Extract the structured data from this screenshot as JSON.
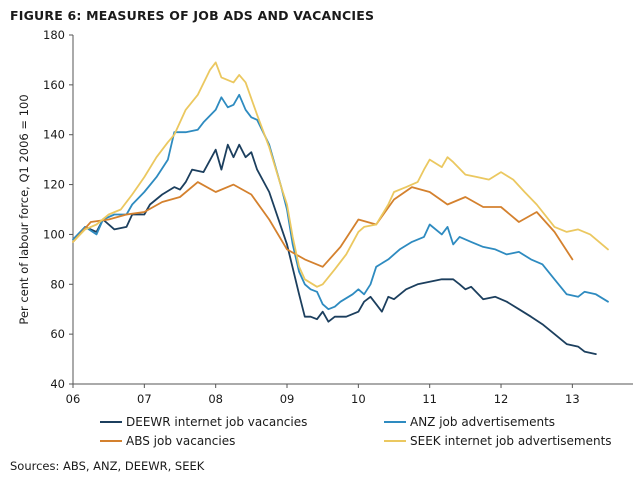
{
  "title": "FIGURE 6: MEASURES OF JOB ADS AND VACANCIES",
  "source": "Sources: ABS, ANZ, DEEWR, SEEK",
  "colors": {
    "DEEWR": "#1c3f5e",
    "ANZ": "#2e8bc0",
    "ABS": "#d4812e",
    "SEEK": "#ebc860",
    "axis": "#555555"
  },
  "chart_data": {
    "type": "line",
    "title": "FIGURE 6: MEASURES OF JOB ADS AND VACANCIES",
    "xlabel": "",
    "ylabel": "Per cent of labour force, Q1 2006 = 100",
    "xlim": [
      2006,
      2013.85
    ],
    "ylim": [
      40,
      180
    ],
    "xticks": [
      2006,
      2007,
      2008,
      2009,
      2010,
      2011,
      2012,
      2013
    ],
    "xtick_labels": [
      "06",
      "07",
      "08",
      "09",
      "10",
      "11",
      "12",
      "13"
    ],
    "yticks": [
      40,
      60,
      80,
      100,
      120,
      140,
      160,
      180
    ],
    "grid": false,
    "legend_position": "bottom",
    "series": [
      {
        "name": "DEEWR internet job vacancies",
        "color_key": "DEEWR",
        "points": [
          [
            2006.0,
            97
          ],
          [
            2006.17,
            103
          ],
          [
            2006.33,
            101
          ],
          [
            2006.42,
            106
          ],
          [
            2006.58,
            102
          ],
          [
            2006.75,
            103
          ],
          [
            2006.83,
            108
          ],
          [
            2007.0,
            108
          ],
          [
            2007.08,
            112
          ],
          [
            2007.25,
            116
          ],
          [
            2007.42,
            119
          ],
          [
            2007.5,
            118
          ],
          [
            2007.58,
            121
          ],
          [
            2007.67,
            126
          ],
          [
            2007.83,
            125
          ],
          [
            2008.0,
            134
          ],
          [
            2008.08,
            126
          ],
          [
            2008.17,
            136
          ],
          [
            2008.25,
            131
          ],
          [
            2008.33,
            136
          ],
          [
            2008.42,
            131
          ],
          [
            2008.5,
            133
          ],
          [
            2008.58,
            126
          ],
          [
            2008.75,
            117
          ],
          [
            2009.0,
            96
          ],
          [
            2009.17,
            76
          ],
          [
            2009.25,
            67
          ],
          [
            2009.33,
            67
          ],
          [
            2009.42,
            66
          ],
          [
            2009.5,
            69
          ],
          [
            2009.58,
            65
          ],
          [
            2009.67,
            67
          ],
          [
            2009.83,
            67
          ],
          [
            2010.0,
            69
          ],
          [
            2010.08,
            73
          ],
          [
            2010.17,
            75
          ],
          [
            2010.25,
            72
          ],
          [
            2010.33,
            69
          ],
          [
            2010.42,
            75
          ],
          [
            2010.5,
            74
          ],
          [
            2010.67,
            78
          ],
          [
            2010.83,
            80
          ],
          [
            2011.0,
            81
          ],
          [
            2011.17,
            82
          ],
          [
            2011.33,
            82
          ],
          [
            2011.42,
            80
          ],
          [
            2011.5,
            78
          ],
          [
            2011.58,
            79
          ],
          [
            2011.75,
            74
          ],
          [
            2011.92,
            75
          ],
          [
            2012.08,
            73
          ],
          [
            2012.25,
            70
          ],
          [
            2012.42,
            67
          ],
          [
            2012.58,
            64
          ],
          [
            2012.75,
            60
          ],
          [
            2012.92,
            56
          ],
          [
            2013.08,
            55
          ],
          [
            2013.17,
            53
          ],
          [
            2013.33,
            52
          ]
        ]
      },
      {
        "name": "ANZ job advertisements",
        "color_key": "ANZ",
        "points": [
          [
            2006.0,
            98
          ],
          [
            2006.17,
            103
          ],
          [
            2006.33,
            100
          ],
          [
            2006.42,
            106
          ],
          [
            2006.58,
            108
          ],
          [
            2006.75,
            108
          ],
          [
            2006.83,
            112
          ],
          [
            2007.0,
            117
          ],
          [
            2007.17,
            123
          ],
          [
            2007.33,
            130
          ],
          [
            2007.42,
            141
          ],
          [
            2007.58,
            141
          ],
          [
            2007.75,
            142
          ],
          [
            2007.83,
            145
          ],
          [
            2008.0,
            150
          ],
          [
            2008.08,
            155
          ],
          [
            2008.17,
            151
          ],
          [
            2008.25,
            152
          ],
          [
            2008.33,
            156
          ],
          [
            2008.42,
            150
          ],
          [
            2008.5,
            147
          ],
          [
            2008.58,
            146
          ],
          [
            2008.75,
            136
          ],
          [
            2008.92,
            119
          ],
          [
            2009.0,
            110
          ],
          [
            2009.08,
            96
          ],
          [
            2009.17,
            85
          ],
          [
            2009.25,
            80
          ],
          [
            2009.33,
            78
          ],
          [
            2009.42,
            77
          ],
          [
            2009.5,
            72
          ],
          [
            2009.58,
            70
          ],
          [
            2009.67,
            71
          ],
          [
            2009.75,
            73
          ],
          [
            2009.92,
            76
          ],
          [
            2010.0,
            78
          ],
          [
            2010.08,
            76
          ],
          [
            2010.17,
            80
          ],
          [
            2010.25,
            87
          ],
          [
            2010.42,
            90
          ],
          [
            2010.58,
            94
          ],
          [
            2010.75,
            97
          ],
          [
            2010.92,
            99
          ],
          [
            2011.0,
            104
          ],
          [
            2011.17,
            100
          ],
          [
            2011.25,
            103
          ],
          [
            2011.33,
            96
          ],
          [
            2011.42,
            99
          ],
          [
            2011.58,
            97
          ],
          [
            2011.75,
            95
          ],
          [
            2011.92,
            94
          ],
          [
            2012.08,
            92
          ],
          [
            2012.25,
            93
          ],
          [
            2012.42,
            90
          ],
          [
            2012.58,
            88
          ],
          [
            2012.75,
            82
          ],
          [
            2012.92,
            76
          ],
          [
            2013.08,
            75
          ],
          [
            2013.17,
            77
          ],
          [
            2013.33,
            76
          ],
          [
            2013.5,
            73
          ]
        ]
      },
      {
        "name": "ABS job vacancies",
        "color_key": "ABS",
        "points": [
          [
            2006.0,
            97
          ],
          [
            2006.25,
            105
          ],
          [
            2006.5,
            106
          ],
          [
            2006.75,
            108
          ],
          [
            2007.0,
            109
          ],
          [
            2007.25,
            113
          ],
          [
            2007.5,
            115
          ],
          [
            2007.75,
            121
          ],
          [
            2008.0,
            117
          ],
          [
            2008.25,
            120
          ],
          [
            2008.5,
            116
          ],
          [
            2008.75,
            106
          ],
          [
            2009.0,
            94
          ],
          [
            2009.25,
            90
          ],
          [
            2009.5,
            87
          ],
          [
            2009.75,
            95
          ],
          [
            2010.0,
            106
          ],
          [
            2010.25,
            104
          ],
          [
            2010.5,
            114
          ],
          [
            2010.75,
            119
          ],
          [
            2011.0,
            117
          ],
          [
            2011.25,
            112
          ],
          [
            2011.5,
            115
          ],
          [
            2011.75,
            111
          ],
          [
            2012.0,
            111
          ],
          [
            2012.25,
            105
          ],
          [
            2012.5,
            109
          ],
          [
            2012.75,
            101
          ],
          [
            2013.0,
            90
          ]
        ]
      },
      {
        "name": "SEEK internet job advertisements",
        "color_key": "SEEK",
        "points": [
          [
            2006.0,
            97
          ],
          [
            2006.17,
            102
          ],
          [
            2006.33,
            104
          ],
          [
            2006.5,
            108
          ],
          [
            2006.67,
            110
          ],
          [
            2006.83,
            116
          ],
          [
            2007.0,
            123
          ],
          [
            2007.17,
            131
          ],
          [
            2007.33,
            137
          ],
          [
            2007.42,
            140
          ],
          [
            2007.58,
            150
          ],
          [
            2007.75,
            156
          ],
          [
            2007.92,
            166
          ],
          [
            2008.0,
            169
          ],
          [
            2008.08,
            163
          ],
          [
            2008.25,
            161
          ],
          [
            2008.33,
            164
          ],
          [
            2008.42,
            161
          ],
          [
            2008.58,
            148
          ],
          [
            2008.75,
            135
          ],
          [
            2008.92,
            119
          ],
          [
            2009.0,
            112
          ],
          [
            2009.08,
            99
          ],
          [
            2009.17,
            87
          ],
          [
            2009.25,
            82
          ],
          [
            2009.42,
            79
          ],
          [
            2009.5,
            80
          ],
          [
            2009.67,
            86
          ],
          [
            2009.83,
            92
          ],
          [
            2010.0,
            101
          ],
          [
            2010.08,
            103
          ],
          [
            2010.25,
            104
          ],
          [
            2010.42,
            112
          ],
          [
            2010.5,
            117
          ],
          [
            2010.67,
            119
          ],
          [
            2010.83,
            121
          ],
          [
            2010.92,
            126
          ],
          [
            2011.0,
            130
          ],
          [
            2011.17,
            127
          ],
          [
            2011.25,
            131
          ],
          [
            2011.33,
            129
          ],
          [
            2011.5,
            124
          ],
          [
            2011.67,
            123
          ],
          [
            2011.83,
            122
          ],
          [
            2012.0,
            125
          ],
          [
            2012.17,
            122
          ],
          [
            2012.33,
            117
          ],
          [
            2012.5,
            112
          ],
          [
            2012.75,
            103
          ],
          [
            2012.92,
            101
          ],
          [
            2013.08,
            102
          ],
          [
            2013.25,
            100
          ],
          [
            2013.5,
            94
          ]
        ]
      }
    ]
  }
}
